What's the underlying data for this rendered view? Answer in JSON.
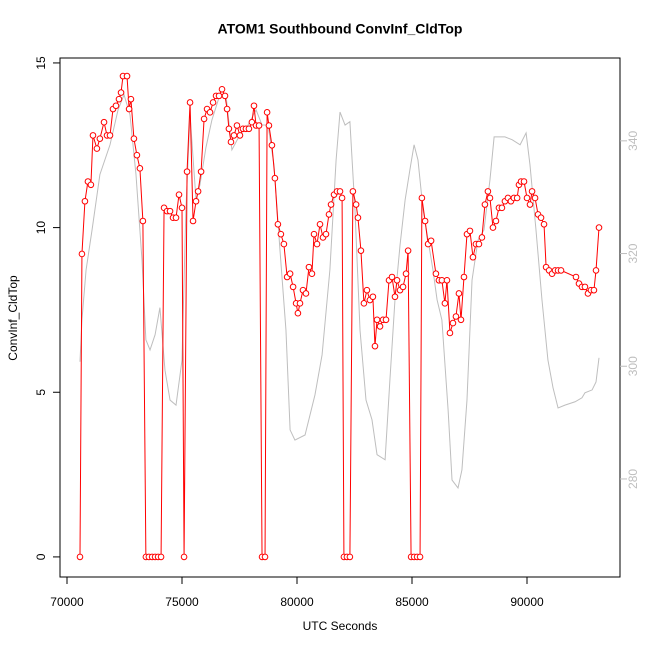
{
  "chart_data": {
    "type": "line",
    "title": "ATOM1 Southbound ConvInf_CldTop",
    "x_label": "UTC Seconds",
    "y_label": "ConvInf_CldTop",
    "xlim": [
      69696,
      94043
    ],
    "xticks": [
      70000,
      75000,
      80000,
      85000,
      90000
    ],
    "ylim": [
      -0.61,
      15.15
    ],
    "yticks": [
      0,
      5,
      10,
      15
    ],
    "y2lim": [
      262.6,
      354.7
    ],
    "y2ticks": [
      280,
      300,
      320,
      340
    ],
    "series": [
      {
        "color": "#bebebe",
        "axis": "y2",
        "markers": false,
        "x": [
          70565,
          70650,
          70830,
          71090,
          71430,
          71870,
          72220,
          72480,
          72740,
          73000,
          73260,
          73430,
          73610,
          73830,
          74040,
          74260,
          74480,
          74740,
          75000,
          75170,
          75350,
          75610,
          75780,
          76040,
          76300,
          76650,
          76910,
          77170,
          77520,
          77870,
          78220,
          78480,
          78740,
          79000,
          79260,
          79520,
          79700,
          79910,
          80350,
          80780,
          81090,
          81430,
          81700,
          81870,
          82090,
          82300,
          82520,
          82740,
          83000,
          83260,
          83480,
          83830,
          84040,
          84260,
          84480,
          84700,
          84910,
          85090,
          85260,
          85480,
          85700,
          85910,
          86090,
          86300,
          86570,
          86740,
          87000,
          87170,
          87390,
          87610,
          87870,
          88130,
          88390,
          88570,
          89040,
          89350,
          89700,
          89960,
          90130,
          90390,
          90650,
          90910,
          91130,
          91350,
          91650,
          92090,
          92390,
          92520,
          92830,
          93000,
          93130
        ],
        "values": [
          300.8,
          308.2,
          317.1,
          324.2,
          334.0,
          339.3,
          345.5,
          348.2,
          344.6,
          334.0,
          318.9,
          304.7,
          302.9,
          305.6,
          310.4,
          299.3,
          294.0,
          293.1,
          301.1,
          327.8,
          344.6,
          329.5,
          332.2,
          338.8,
          343.7,
          348.2,
          348.2,
          338.4,
          341.1,
          342.8,
          345.5,
          342.8,
          342.8,
          335.7,
          320.6,
          306.4,
          288.7,
          286.9,
          287.8,
          294.9,
          302.0,
          317.1,
          336.6,
          345.1,
          342.8,
          343.4,
          327.8,
          306.4,
          294.0,
          290.5,
          284.3,
          283.4,
          297.6,
          311.8,
          321.5,
          329.5,
          334.9,
          339.3,
          336.6,
          327.8,
          322.4,
          317.1,
          311.8,
          308.2,
          292.2,
          279.8,
          278.4,
          281.6,
          294.0,
          315.3,
          322.4,
          324.2,
          333.1,
          340.7,
          340.7,
          340.2,
          339.3,
          341.4,
          335.7,
          324.2,
          311.8,
          301.1,
          296.2,
          292.6,
          293.1,
          293.7,
          294.4,
          295.3,
          295.8,
          297.2,
          301.5
        ]
      },
      {
        "color": "#ff0000",
        "axis": "y",
        "markers": true,
        "x": [
          70565,
          70650,
          70780,
          70910,
          71040,
          71130,
          71300,
          71430,
          71610,
          71740,
          71870,
          72000,
          72130,
          72260,
          72350,
          72435,
          72610,
          72700,
          72780,
          72910,
          73040,
          73170,
          73300,
          73430,
          73560,
          73700,
          73830,
          73960,
          74090,
          74220,
          74350,
          74480,
          74610,
          74740,
          74870,
          75000,
          75090,
          75220,
          75350,
          75480,
          75610,
          75700,
          75830,
          75960,
          76090,
          76220,
          76350,
          76480,
          76610,
          76740,
          76870,
          76960,
          77040,
          77130,
          77260,
          77390,
          77520,
          77650,
          77780,
          77910,
          78040,
          78130,
          78220,
          78350,
          78480,
          78610,
          78700,
          78780,
          78910,
          79040,
          79170,
          79300,
          79430,
          79570,
          79700,
          79830,
          79960,
          80040,
          80130,
          80260,
          80390,
          80520,
          80650,
          80740,
          80870,
          81000,
          81130,
          81260,
          81390,
          81480,
          81610,
          81740,
          81870,
          81960,
          82040,
          82170,
          82300,
          82430,
          82570,
          82650,
          82780,
          82910,
          83040,
          83170,
          83300,
          83390,
          83480,
          83610,
          83740,
          83870,
          84000,
          84130,
          84260,
          84350,
          84480,
          84610,
          84740,
          84830,
          84960,
          85090,
          85220,
          85350,
          85430,
          85570,
          85700,
          85830,
          86040,
          86170,
          86300,
          86430,
          86520,
          86650,
          86780,
          86910,
          87040,
          87130,
          87260,
          87390,
          87520,
          87650,
          87780,
          87910,
          88040,
          88170,
          88300,
          88390,
          88520,
          88650,
          88780,
          88910,
          89040,
          89170,
          89300,
          89430,
          89570,
          89650,
          89740,
          89870,
          90000,
          90130,
          90220,
          90350,
          90480,
          90610,
          90740,
          90830,
          90960,
          91090,
          91220,
          91350,
          91480,
          92130,
          92260,
          92390,
          92520,
          92650,
          92780,
          92910,
          93000,
          93130
        ],
        "values": [
          0,
          9.2,
          10.8,
          11.4,
          11.3,
          12.8,
          12.4,
          12.7,
          13.2,
          12.8,
          12.8,
          13.6,
          13.7,
          13.9,
          14.1,
          14.6,
          14.6,
          13.6,
          13.9,
          12.7,
          12.2,
          11.8,
          10.2,
          0,
          0,
          0,
          0,
          0,
          0,
          10.6,
          10.5,
          10.5,
          10.3,
          10.3,
          11.0,
          10.6,
          0,
          11.7,
          13.8,
          10.2,
          10.8,
          11.1,
          11.7,
          13.3,
          13.6,
          13.5,
          13.8,
          14.0,
          14.0,
          14.2,
          14.0,
          13.6,
          13.0,
          12.6,
          12.8,
          13.1,
          12.8,
          13.0,
          13.0,
          13.0,
          13.2,
          13.7,
          13.1,
          13.1,
          0,
          0,
          13.5,
          13.1,
          12.5,
          11.5,
          10.1,
          9.8,
          9.5,
          8.5,
          8.6,
          8.2,
          7.7,
          7.4,
          7.7,
          8.1,
          8.0,
          8.8,
          8.6,
          9.8,
          9.5,
          10.1,
          9.7,
          9.8,
          10.4,
          10.7,
          11.0,
          11.1,
          11.1,
          10.9,
          0,
          0,
          0,
          11.1,
          10.7,
          10.3,
          9.3,
          7.7,
          8.1,
          7.8,
          7.9,
          6.4,
          7.2,
          7.0,
          7.2,
          7.2,
          8.4,
          8.5,
          7.9,
          8.4,
          8.1,
          8.2,
          8.6,
          9.3,
          0,
          0,
          0,
          0,
          10.9,
          10.2,
          9.5,
          9.6,
          8.6,
          8.4,
          8.4,
          7.7,
          8.4,
          6.8,
          7.1,
          7.3,
          8.0,
          7.2,
          8.5,
          9.8,
          9.9,
          9.1,
          9.5,
          9.5,
          9.7,
          10.7,
          11.1,
          10.9,
          10.0,
          10.2,
          10.6,
          10.6,
          10.8,
          10.9,
          10.8,
          10.9,
          10.9,
          11.3,
          11.4,
          11.4,
          10.9,
          10.7,
          11.1,
          10.9,
          10.4,
          10.3,
          10.1,
          8.8,
          8.7,
          8.6,
          8.7,
          8.7,
          8.7,
          8.5,
          8.3,
          8.2,
          8.2,
          8.0,
          8.1,
          8.1,
          8.7,
          10.0
        ]
      }
    ]
  }
}
